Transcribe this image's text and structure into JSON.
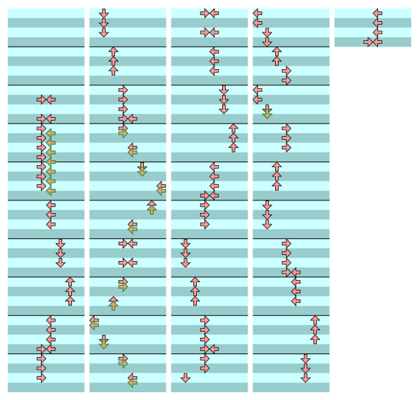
{
  "columns": [
    10,
    10,
    10,
    10,
    1
  ],
  "notes": [
    [
      0,
      9,
      3,
      "R",
      0
    ],
    [
      0,
      9,
      4,
      "L",
      0
    ],
    [
      0,
      11,
      3,
      "R",
      0
    ],
    [
      0,
      11,
      4,
      "L",
      0
    ],
    [
      0,
      12,
      3,
      "R",
      0
    ],
    [
      0,
      12.5,
      4,
      "L",
      1
    ],
    [
      0,
      13,
      3,
      "R",
      0
    ],
    [
      0,
      13.5,
      4,
      "L",
      1
    ],
    [
      0,
      14,
      3,
      "R",
      0
    ],
    [
      0,
      14.5,
      4,
      "L",
      1
    ],
    [
      0,
      15,
      3,
      "R",
      0
    ],
    [
      0,
      15.5,
      4,
      "L",
      1
    ],
    [
      0,
      16,
      3,
      "R",
      0
    ],
    [
      0,
      16.5,
      4,
      "L",
      1
    ],
    [
      0,
      17,
      3,
      "R",
      0
    ],
    [
      0,
      17.5,
      4,
      "L",
      1
    ],
    [
      0,
      18,
      3,
      "R",
      0
    ],
    [
      0,
      18.5,
      4,
      "L",
      1
    ],
    [
      0,
      20,
      4,
      "L",
      0
    ],
    [
      0,
      21,
      4,
      "L",
      0
    ],
    [
      0,
      22,
      4,
      "L",
      0
    ],
    [
      0,
      24,
      5,
      "D",
      0
    ],
    [
      0,
      25,
      5,
      "D",
      0
    ],
    [
      0,
      26,
      5,
      "D",
      0
    ],
    [
      0,
      28,
      6,
      "U",
      0
    ],
    [
      0,
      29,
      6,
      "U",
      0
    ],
    [
      0,
      30,
      6,
      "U",
      0
    ],
    [
      0,
      32,
      4,
      "L",
      0
    ],
    [
      0,
      33,
      4,
      "L",
      0
    ],
    [
      0,
      34,
      4,
      "L",
      0
    ],
    [
      0,
      35,
      3,
      "R",
      0
    ],
    [
      0,
      35,
      4,
      "L",
      0
    ],
    [
      0,
      36,
      3,
      "R",
      0
    ],
    [
      0,
      37,
      3,
      "R",
      0
    ],
    [
      0,
      38,
      3,
      "R",
      0
    ],
    [
      1,
      0,
      1,
      "D",
      0
    ],
    [
      1,
      1,
      1,
      "D",
      0
    ],
    [
      1,
      2,
      1,
      "D",
      0
    ],
    [
      1,
      4,
      2,
      "U",
      0
    ],
    [
      1,
      5,
      2,
      "U",
      0
    ],
    [
      1,
      6,
      2,
      "U",
      0
    ],
    [
      1,
      8,
      3,
      "R",
      0
    ],
    [
      1,
      9,
      3,
      "R",
      0
    ],
    [
      1,
      10,
      3,
      "R",
      0
    ],
    [
      1,
      11,
      3,
      "R",
      0
    ],
    [
      1,
      11,
      4,
      "L",
      0
    ],
    [
      1,
      12,
      3,
      "R",
      0
    ],
    [
      1,
      12.5,
      3,
      "R",
      1
    ],
    [
      1,
      14,
      4,
      "L",
      0
    ],
    [
      1,
      14.5,
      4,
      "L",
      1
    ],
    [
      1,
      16,
      5,
      "D",
      0
    ],
    [
      1,
      16.5,
      5,
      "D",
      1
    ],
    [
      1,
      18,
      7,
      "L",
      0
    ],
    [
      1,
      18.5,
      7,
      "L",
      1
    ],
    [
      1,
      20,
      6,
      "U",
      0
    ],
    [
      1,
      20.5,
      6,
      "U",
      1
    ],
    [
      1,
      22,
      4,
      "L",
      0
    ],
    [
      1,
      22.5,
      4,
      "L",
      1
    ],
    [
      1,
      24,
      3,
      "R",
      0
    ],
    [
      1,
      24,
      4,
      "L",
      0
    ],
    [
      1,
      26,
      3,
      "R",
      0
    ],
    [
      1,
      26,
      4,
      "L",
      0
    ],
    [
      1,
      28,
      3,
      "R",
      0
    ],
    [
      1,
      28.5,
      3,
      "R",
      1
    ],
    [
      1,
      30,
      2,
      "U",
      0
    ],
    [
      1,
      30.5,
      2,
      "U",
      1
    ],
    [
      1,
      32,
      0,
      "L",
      0
    ],
    [
      1,
      32.5,
      0,
      "L",
      1
    ],
    [
      1,
      34,
      1,
      "D",
      0
    ],
    [
      1,
      34.5,
      1,
      "D",
      1
    ],
    [
      1,
      36,
      3,
      "R",
      0
    ],
    [
      1,
      36.5,
      3,
      "R",
      1
    ],
    [
      1,
      38,
      4,
      "L",
      0
    ],
    [
      1,
      38.5,
      4,
      "L",
      1
    ],
    [
      2,
      0,
      3,
      "R",
      0
    ],
    [
      2,
      0,
      4,
      "L",
      0
    ],
    [
      2,
      2,
      3,
      "R",
      0
    ],
    [
      2,
      2,
      4,
      "L",
      0
    ],
    [
      2,
      4,
      4,
      "L",
      0
    ],
    [
      2,
      5,
      4,
      "L",
      0
    ],
    [
      2,
      6,
      4,
      "L",
      0
    ],
    [
      2,
      8,
      5,
      "D",
      0
    ],
    [
      2,
      9,
      5,
      "D",
      0
    ],
    [
      2,
      10,
      5,
      "D",
      0
    ],
    [
      2,
      12,
      6,
      "U",
      0
    ],
    [
      2,
      13,
      6,
      "U",
      0
    ],
    [
      2,
      14,
      6,
      "U",
      0
    ],
    [
      2,
      16,
      4,
      "L",
      0
    ],
    [
      2,
      17,
      4,
      "L",
      0
    ],
    [
      2,
      18,
      4,
      "L",
      0
    ],
    [
      2,
      19,
      3,
      "R",
      0
    ],
    [
      2,
      19,
      4,
      "L",
      0
    ],
    [
      2,
      20,
      3,
      "R",
      0
    ],
    [
      2,
      21,
      3,
      "R",
      0
    ],
    [
      2,
      22,
      3,
      "R",
      0
    ],
    [
      2,
      24,
      1,
      "D",
      0
    ],
    [
      2,
      25,
      1,
      "D",
      0
    ],
    [
      2,
      26,
      1,
      "D",
      0
    ],
    [
      2,
      28,
      2,
      "U",
      0
    ],
    [
      2,
      29,
      2,
      "U",
      0
    ],
    [
      2,
      30,
      2,
      "U",
      0
    ],
    [
      2,
      32,
      3,
      "R",
      0
    ],
    [
      2,
      33,
      3,
      "R",
      0
    ],
    [
      2,
      34,
      3,
      "R",
      0
    ],
    [
      2,
      35,
      3,
      "R",
      0
    ],
    [
      2,
      35,
      4,
      "L",
      0
    ],
    [
      2,
      36,
      3,
      "R",
      0
    ],
    [
      2,
      37,
      3,
      "R",
      0
    ],
    [
      2,
      38,
      1,
      "D",
      0
    ],
    [
      3,
      0,
      0,
      "L",
      0
    ],
    [
      3,
      1,
      0,
      "L",
      0
    ],
    [
      3,
      2,
      1,
      "D",
      0
    ],
    [
      3,
      3,
      1,
      "D",
      0
    ],
    [
      3,
      4,
      2,
      "U",
      0
    ],
    [
      3,
      5,
      2,
      "U",
      0
    ],
    [
      3,
      6,
      3,
      "R",
      0
    ],
    [
      3,
      7,
      3,
      "R",
      0
    ],
    [
      3,
      8,
      0,
      "L",
      0
    ],
    [
      3,
      9,
      0,
      "L",
      0
    ],
    [
      3,
      10,
      1,
      "D",
      0
    ],
    [
      3,
      10.5,
      1,
      "D",
      1
    ],
    [
      3,
      12,
      3,
      "R",
      0
    ],
    [
      3,
      13,
      3,
      "R",
      0
    ],
    [
      3,
      14,
      3,
      "R",
      0
    ],
    [
      3,
      16,
      2,
      "U",
      0
    ],
    [
      3,
      17,
      2,
      "U",
      0
    ],
    [
      3,
      18,
      2,
      "U",
      0
    ],
    [
      3,
      20,
      1,
      "D",
      0
    ],
    [
      3,
      21,
      1,
      "D",
      0
    ],
    [
      3,
      22,
      1,
      "D",
      0
    ],
    [
      3,
      24,
      3,
      "R",
      0
    ],
    [
      3,
      25,
      3,
      "R",
      0
    ],
    [
      3,
      26,
      3,
      "R",
      0
    ],
    [
      3,
      27,
      3,
      "R",
      0
    ],
    [
      3,
      27,
      4,
      "L",
      0
    ],
    [
      3,
      28,
      4,
      "L",
      0
    ],
    [
      3,
      29,
      4,
      "L",
      0
    ],
    [
      3,
      30,
      4,
      "L",
      0
    ],
    [
      3,
      32,
      6,
      "U",
      0
    ],
    [
      3,
      33,
      6,
      "U",
      0
    ],
    [
      3,
      34,
      6,
      "U",
      0
    ],
    [
      3,
      36,
      5,
      "D",
      0
    ],
    [
      3,
      37,
      5,
      "D",
      0
    ],
    [
      3,
      38,
      5,
      "D",
      0
    ],
    [
      4,
      0,
      4,
      "L",
      0
    ],
    [
      4,
      1,
      4,
      "L",
      0
    ],
    [
      4,
      2,
      4,
      "L",
      0
    ],
    [
      4,
      3,
      3,
      "R",
      0
    ],
    [
      4,
      3,
      4,
      "L",
      0
    ]
  ]
}
